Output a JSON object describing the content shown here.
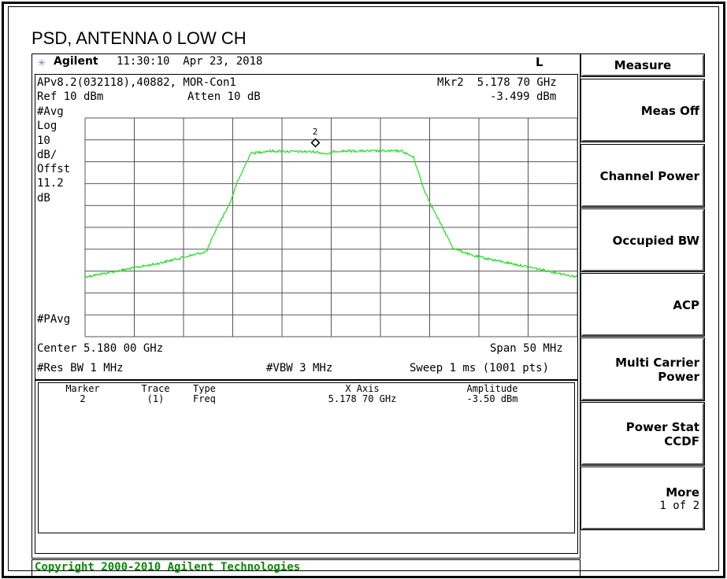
{
  "title": "PSD, ANTENNA 0 LOW CH",
  "header": {
    "brand": "Agilent",
    "time": "11:30:10  Apr 23, 2018",
    "indicator": "L"
  },
  "info": {
    "setup": "APv8.2(032118),40882, MOR-Con1",
    "marker_readout": "Mkr2  5.178 70 GHz",
    "ref": "Ref 10 dBm",
    "atten": "Atten 10 dB",
    "marker_amp": "-3.499 dBm"
  },
  "left_labels": [
    "#Avg",
    "Log",
    "10",
    "dB/",
    "Offst",
    "11.2",
    "dB"
  ],
  "pavg": "#PAvg",
  "marker_label": "2",
  "footer": {
    "center": "Center 5.180 00 GHz",
    "span": "Span 50 MHz",
    "rbw": "#Res BW 1 MHz",
    "vbw": "#VBW 3 MHz",
    "sweep": "Sweep 1 ms (1001 pts)"
  },
  "table": {
    "headers": [
      "Marker",
      "Trace",
      "Type",
      "X Axis",
      "Amplitude"
    ],
    "rows": [
      [
        "2",
        "(1)",
        "Freq",
        "5.178 70 GHz",
        "-3.50 dBm"
      ]
    ]
  },
  "softkeys": {
    "title": "Measure",
    "keys": [
      [
        "Meas Off"
      ],
      [
        "Channel Power"
      ],
      [
        "Occupied BW"
      ],
      [
        "ACP"
      ],
      [
        "Multi Carrier",
        "Power"
      ],
      [
        "Power Stat",
        "CCDF"
      ],
      [
        "More",
        "1 of 2"
      ]
    ]
  },
  "copyright": "Copyright 2000-2010 Agilent Technologies"
}
